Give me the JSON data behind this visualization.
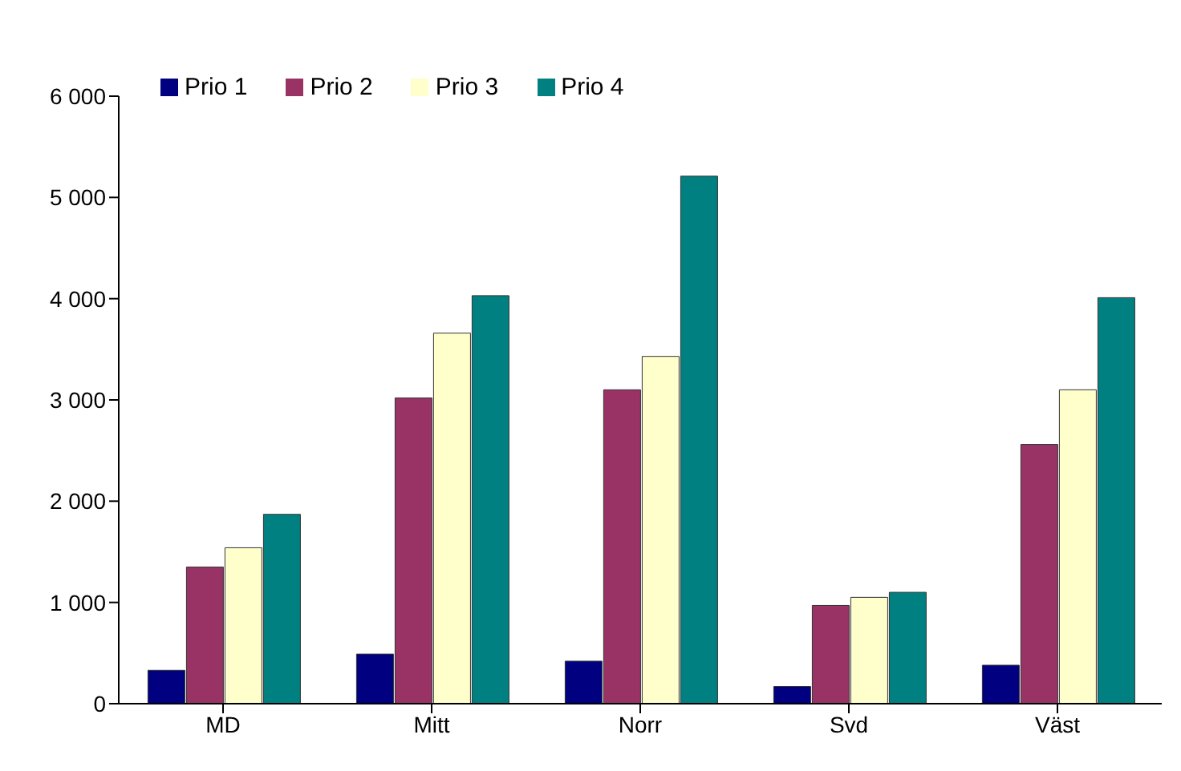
{
  "chart_data": {
    "type": "bar",
    "categories": [
      "MD",
      "Mitt",
      "Norr",
      "Svd",
      "Väst"
    ],
    "series": [
      {
        "name": "Prio 1",
        "color": "#000080",
        "values": [
          330,
          490,
          420,
          170,
          380
        ]
      },
      {
        "name": "Prio 2",
        "color": "#993366",
        "values": [
          1350,
          3020,
          3100,
          970,
          2560
        ]
      },
      {
        "name": "Prio 3",
        "color": "#ffffcc",
        "values": [
          1540,
          3660,
          3430,
          1050,
          3100
        ]
      },
      {
        "name": "Prio 4",
        "color": "#008080",
        "values": [
          1870,
          4030,
          5210,
          1100,
          4010
        ]
      }
    ],
    "ylim": [
      0,
      6000
    ],
    "yticks": [
      {
        "value": 0,
        "label": "0"
      },
      {
        "value": 1000,
        "label": "1 000"
      },
      {
        "value": 2000,
        "label": "2 000"
      },
      {
        "value": 3000,
        "label": "3 000"
      },
      {
        "value": 4000,
        "label": "4 000"
      },
      {
        "value": 5000,
        "label": "5 000"
      },
      {
        "value": 6000,
        "label": "6 000"
      }
    ],
    "grid": false,
    "legend": "top left"
  }
}
